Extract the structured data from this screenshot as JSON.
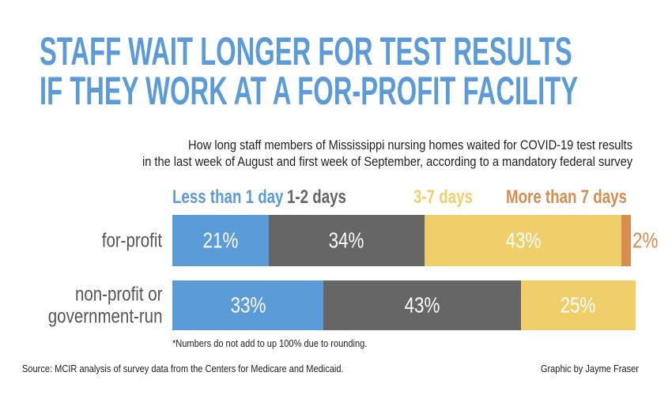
{
  "chart_data": {
    "type": "stacked-bar",
    "orientation": "horizontal",
    "title": "STAFF WAIT LONGER FOR TEST RESULTS\nIF THEY WORK AT A FOR-PROFIT FACILITY",
    "subtitle": "How long staff members of Mississippi nursing homes waited for COVID-19 test results\nin the last week of August and first week of September, according to a mandatory federal survey",
    "categories": [
      "for-profit",
      "non-profit or\ngovernment-run"
    ],
    "series": [
      {
        "name": "Less than 1 day",
        "color": "#5b9bd8",
        "values": [
          21,
          33
        ],
        "value_labels": [
          "21%",
          "33%"
        ]
      },
      {
        "name": "1-2 days",
        "color": "#666666",
        "values": [
          34,
          43
        ],
        "value_labels": [
          "34%",
          "43%"
        ]
      },
      {
        "name": "3-7 days",
        "color": "#f0cf6a",
        "values": [
          43,
          25
        ],
        "value_labels": [
          "43%",
          "25%"
        ]
      },
      {
        "name": "More than 7 days",
        "color": "#d98c4f",
        "values": [
          2,
          null
        ],
        "value_labels": [
          "2%",
          null
        ]
      }
    ],
    "note": "*Numbers do not add to up 100% due to rounding.",
    "source": "Source: MCIR analysis of survey data from the Centers for Medicare and Medicaid.",
    "credit": "Graphic by Jayme Fraser"
  }
}
